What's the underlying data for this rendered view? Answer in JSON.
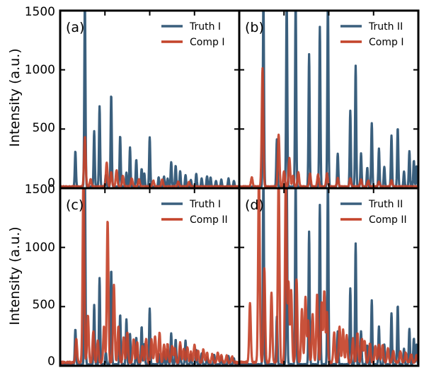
{
  "colors": {
    "truth": "#3a5f7d",
    "comp": "#c4432a",
    "overlap": "#5a3a36",
    "frame": "#000000"
  },
  "chart_data": [
    {
      "type": "line",
      "panel": "(a)",
      "ylabel": "Intensity (a.u.)",
      "xlim": [
        0,
        100
      ],
      "ylim": [
        0,
        1500
      ],
      "yticks": [
        0,
        500,
        1000,
        1500
      ],
      "grid": false,
      "legend": "top-right",
      "series": [
        {
          "name": "Truth I",
          "role": "truth",
          "baseline": 12,
          "noise": 6,
          "peaks": [
            [
              8.5,
              300
            ],
            [
              13.8,
              1600
            ],
            [
              19,
              470
            ],
            [
              22,
              680
            ],
            [
              25.5,
              100
            ],
            [
              28.5,
              780
            ],
            [
              33.5,
              430
            ],
            [
              37,
              120
            ],
            [
              39,
              330
            ],
            [
              42.5,
              230
            ],
            [
              45.5,
              150
            ],
            [
              47,
              110
            ],
            [
              50,
              420
            ],
            [
              55,
              80
            ],
            [
              58,
              85
            ],
            [
              60,
              70
            ],
            [
              62,
              210
            ],
            [
              64.5,
              180
            ],
            [
              67,
              130
            ],
            [
              70,
              100
            ],
            [
              73,
              60
            ],
            [
              76,
              110
            ],
            [
              79,
              70
            ],
            [
              82,
              90
            ],
            [
              84,
              80
            ],
            [
              87,
              50
            ],
            [
              90,
              60
            ],
            [
              94,
              70
            ],
            [
              97,
              50
            ]
          ]
        },
        {
          "name": "Comp I",
          "role": "comp",
          "baseline": 14,
          "noise": 8,
          "peaks": [
            [
              13.8,
              420
            ],
            [
              17,
              60
            ],
            [
              26,
              200
            ],
            [
              28.5,
              120
            ],
            [
              31.5,
              140
            ],
            [
              35,
              90
            ],
            [
              40,
              70
            ],
            [
              44,
              60
            ],
            [
              52,
              50
            ],
            [
              57,
              60
            ],
            [
              66,
              40
            ],
            [
              72,
              40
            ]
          ]
        }
      ]
    },
    {
      "type": "line",
      "panel": "(b)",
      "ylabel": "",
      "xlim": [
        0,
        100
      ],
      "ylim": [
        0,
        1500
      ],
      "yticks": [
        0,
        500,
        1000,
        1500
      ],
      "grid": false,
      "legend": "top-right",
      "series": [
        {
          "name": "Truth II",
          "role": "truth",
          "baseline": 12,
          "noise": 6,
          "peaks": [
            [
              13.5,
              1600
            ],
            [
              21,
              400
            ],
            [
              26.5,
              1600
            ],
            [
              31.5,
              1600
            ],
            [
              39,
              1120
            ],
            [
              45,
              1350
            ],
            [
              49.5,
              1600
            ],
            [
              55,
              280
            ],
            [
              62,
              640
            ],
            [
              65,
              1020
            ],
            [
              68,
              280
            ],
            [
              71.5,
              160
            ],
            [
              74,
              540
            ],
            [
              78,
              320
            ],
            [
              81,
              170
            ],
            [
              85,
              430
            ],
            [
              88.5,
              500
            ],
            [
              92,
              130
            ],
            [
              95,
              300
            ],
            [
              97.5,
              220
            ],
            [
              99,
              170
            ]
          ]
        },
        {
          "name": "Comp I",
          "role": "comp",
          "baseline": 14,
          "noise": 8,
          "peaks": [
            [
              7,
              80
            ],
            [
              13,
              1000
            ],
            [
              22,
              440
            ],
            [
              25,
              130
            ],
            [
              28,
              240
            ],
            [
              30,
              90
            ],
            [
              33,
              120
            ],
            [
              39.5,
              110
            ],
            [
              44,
              100
            ],
            [
              49,
              110
            ],
            [
              55,
              70
            ],
            [
              62,
              70
            ],
            [
              68,
              60
            ],
            [
              72,
              50
            ],
            [
              78,
              40
            ],
            [
              85,
              50
            ]
          ]
        }
      ]
    },
    {
      "type": "line",
      "panel": "(c)",
      "ylabel": "Intensity (a.u.)",
      "xlim": [
        0,
        100
      ],
      "ylim": [
        0,
        1500
      ],
      "yticks": [
        0,
        500,
        1000,
        1500
      ],
      "grid": false,
      "legend": "top-right",
      "series": [
        {
          "name": "Truth I",
          "role": "truth",
          "baseline": 12,
          "noise": 6,
          "peaks": [
            [
              8.5,
              300
            ],
            [
              13.8,
              1600
            ],
            [
              19,
              500
            ],
            [
              22,
              730
            ],
            [
              25.5,
              100
            ],
            [
              28.5,
              800
            ],
            [
              33.5,
              420
            ],
            [
              37,
              380
            ],
            [
              39,
              260
            ],
            [
              42.5,
              230
            ],
            [
              45.5,
              320
            ],
            [
              47,
              170
            ],
            [
              50,
              470
            ],
            [
              55,
              90
            ],
            [
              58,
              110
            ],
            [
              60,
              120
            ],
            [
              62,
              260
            ],
            [
              64.5,
              210
            ],
            [
              67,
              160
            ],
            [
              70,
              200
            ],
            [
              73,
              80
            ],
            [
              76,
              120
            ],
            [
              79,
              90
            ],
            [
              82,
              60
            ],
            [
              86,
              80
            ],
            [
              90,
              60
            ],
            [
              94,
              70
            ],
            [
              97,
              50
            ]
          ]
        },
        {
          "name": "Comp II",
          "role": "comp",
          "baseline": 28,
          "noise": 14,
          "peaks": [
            [
              9,
              200
            ],
            [
              13,
              1600
            ],
            [
              15.5,
              400
            ],
            [
              18.5,
              260
            ],
            [
              21,
              180
            ],
            [
              24.5,
              300
            ],
            [
              26.5,
              1200
            ],
            [
              30,
              650
            ],
            [
              32.5,
              300
            ],
            [
              35.5,
              210
            ],
            [
              37.5,
              260
            ],
            [
              41,
              200
            ],
            [
              43,
              170
            ],
            [
              46,
              140
            ],
            [
              48,
              200
            ],
            [
              51,
              190
            ],
            [
              53,
              220
            ],
            [
              55.5,
              250
            ],
            [
              58,
              150
            ],
            [
              60,
              160
            ],
            [
              62.5,
              140
            ],
            [
              64,
              120
            ],
            [
              67,
              170
            ],
            [
              69,
              110
            ],
            [
              71,
              130
            ],
            [
              73,
              90
            ],
            [
              75,
              150
            ],
            [
              77,
              100
            ],
            [
              80,
              110
            ],
            [
              82,
              80
            ],
            [
              85,
              70
            ],
            [
              88,
              80
            ],
            [
              90,
              60
            ],
            [
              93,
              60
            ],
            [
              96,
              50
            ]
          ]
        }
      ]
    },
    {
      "type": "line",
      "panel": "(d)",
      "ylabel": "",
      "xlim": [
        0,
        100
      ],
      "ylim": [
        0,
        1500
      ],
      "yticks": [
        0,
        500,
        1000,
        1500
      ],
      "grid": false,
      "legend": "top-right",
      "series": [
        {
          "name": "Truth II",
          "role": "truth",
          "baseline": 12,
          "noise": 6,
          "peaks": [
            [
              13.5,
              1600
            ],
            [
              21,
              400
            ],
            [
              26.5,
              1600
            ],
            [
              31.5,
              1600
            ],
            [
              39,
              1120
            ],
            [
              45,
              1350
            ],
            [
              49.5,
              1600
            ],
            [
              55,
              280
            ],
            [
              62,
              640
            ],
            [
              65,
              1020
            ],
            [
              68,
              280
            ],
            [
              71.5,
              160
            ],
            [
              74,
              540
            ],
            [
              78,
              320
            ],
            [
              81,
              170
            ],
            [
              85,
              430
            ],
            [
              88.5,
              500
            ],
            [
              92,
              130
            ],
            [
              95,
              300
            ],
            [
              97.5,
              220
            ],
            [
              99,
              170
            ]
          ]
        },
        {
          "name": "Comp II",
          "role": "comp",
          "baseline": 30,
          "noise": 14,
          "peaks": [
            [
              6,
              500
            ],
            [
              11,
              1600
            ],
            [
              14,
              800
            ],
            [
              18,
              580
            ],
            [
              22,
              1600
            ],
            [
              26,
              1600
            ],
            [
              27.5,
              680
            ],
            [
              29,
              600
            ],
            [
              32,
              700
            ],
            [
              35,
              450
            ],
            [
              37,
              550
            ],
            [
              38.5,
              350
            ],
            [
              41,
              400
            ],
            [
              43.5,
              570
            ],
            [
              46,
              500
            ],
            [
              47.5,
              600
            ],
            [
              49,
              420
            ],
            [
              53,
              250
            ],
            [
              56,
              300
            ],
            [
              58,
              270
            ],
            [
              60,
              230
            ],
            [
              63.5,
              200
            ],
            [
              66,
              250
            ],
            [
              68.5,
              200
            ],
            [
              70,
              180
            ],
            [
              73,
              160
            ],
            [
              76,
              140
            ],
            [
              78,
              150
            ],
            [
              80,
              150
            ],
            [
              83,
              120
            ],
            [
              86,
              100
            ],
            [
              90,
              90
            ],
            [
              93,
              80
            ],
            [
              96,
              70
            ],
            [
              99,
              60
            ]
          ]
        }
      ]
    }
  ]
}
